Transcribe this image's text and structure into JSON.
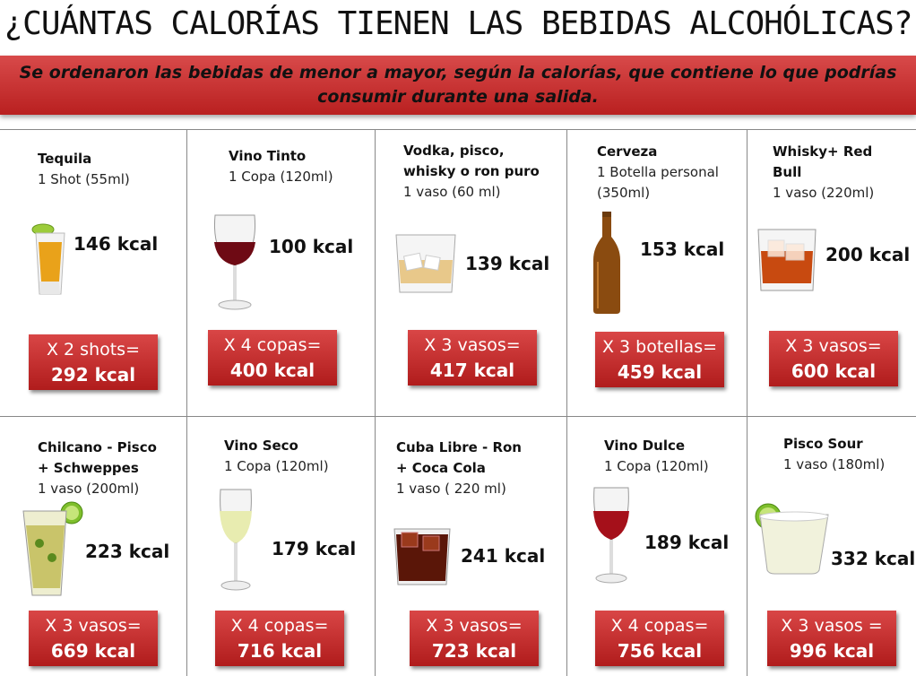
{
  "title": "¿CUÁNTAS CALORÍAS TIENEN LAS BEBIDAS ALCOHÓLICAS?",
  "banner_text": "Se ordenaron las bebidas de menor a mayor, según la calorías, que contiene lo que podrías consumir durante una salida.",
  "colors": {
    "banner": "#c62f2f",
    "total_box": "#c62f2f",
    "total_text": "#ffffff",
    "grid_line": "#888888"
  },
  "drinks": [
    {
      "name_lines": [
        "Tequila"
      ],
      "serving_lines": [
        "1 Shot (55ml)"
      ],
      "kcal": "146 kcal",
      "total_line1": "X 2 shots=",
      "total_line2": "292 kcal",
      "icon": "tequila-shot-icon"
    },
    {
      "name_lines": [
        "Vino Tinto"
      ],
      "serving_lines": [
        "1 Copa (120ml)"
      ],
      "kcal": "100 kcal",
      "total_line1": "X 4 copas=",
      "total_line2": "400 kcal",
      "icon": "red-wine-glass-icon"
    },
    {
      "name_lines": [
        "Vodka, pisco,",
        "whisky o ron puro"
      ],
      "serving_lines": [
        "1 vaso (60 ml)"
      ],
      "kcal": "139 kcal",
      "total_line1": "X 3 vasos=",
      "total_line2": "417 kcal",
      "icon": "rocks-glass-icon"
    },
    {
      "name_lines": [
        "Cerveza"
      ],
      "serving_lines": [
        "1 Botella personal",
        "(350ml)"
      ],
      "kcal": "153 kcal",
      "total_line1": "X 3 botellas=",
      "total_line2": "459 kcal",
      "icon": "beer-bottle-icon"
    },
    {
      "name_lines": [
        "Whisky+ Red",
        "Bull"
      ],
      "serving_lines": [
        "1 vaso (220ml)"
      ],
      "kcal": "200 kcal",
      "total_line1": "X 3 vasos=",
      "total_line2": "600 kcal",
      "icon": "whisky-glass-icon"
    },
    {
      "name_lines": [
        "Chilcano - Pisco",
        "+ Schweppes"
      ],
      "serving_lines": [
        "1 vaso (200ml)"
      ],
      "kcal": "223 kcal",
      "total_line1": "X 3 vasos=",
      "total_line2": "669 kcal",
      "icon": "chilcano-glass-icon"
    },
    {
      "name_lines": [
        "Vino Seco"
      ],
      "serving_lines": [
        "1 Copa (120ml)"
      ],
      "kcal": "179 kcal",
      "total_line1": "X 4 copas=",
      "total_line2": "716 kcal",
      "icon": "white-wine-glass-icon"
    },
    {
      "name_lines": [
        "Cuba Libre - Ron",
        "+ Coca Cola"
      ],
      "serving_lines": [
        "1 vaso ( 220 ml)"
      ],
      "kcal": "241 kcal",
      "total_line1": "X 3 vasos=",
      "total_line2": "723 kcal",
      "icon": "cuba-libre-glass-icon"
    },
    {
      "name_lines": [
        "Vino Dulce"
      ],
      "serving_lines": [
        "1 Copa (120ml)"
      ],
      "kcal": "189 kcal",
      "total_line1": "X 4 copas=",
      "total_line2": "756 kcal",
      "icon": "sweet-wine-glass-icon"
    },
    {
      "name_lines": [
        "Pisco Sour"
      ],
      "serving_lines": [
        "1 vaso  (180ml)"
      ],
      "kcal": "332 kcal",
      "total_line1": "X 3 vasos =",
      "total_line2": "996 kcal",
      "icon": "pisco-sour-glass-icon"
    }
  ]
}
